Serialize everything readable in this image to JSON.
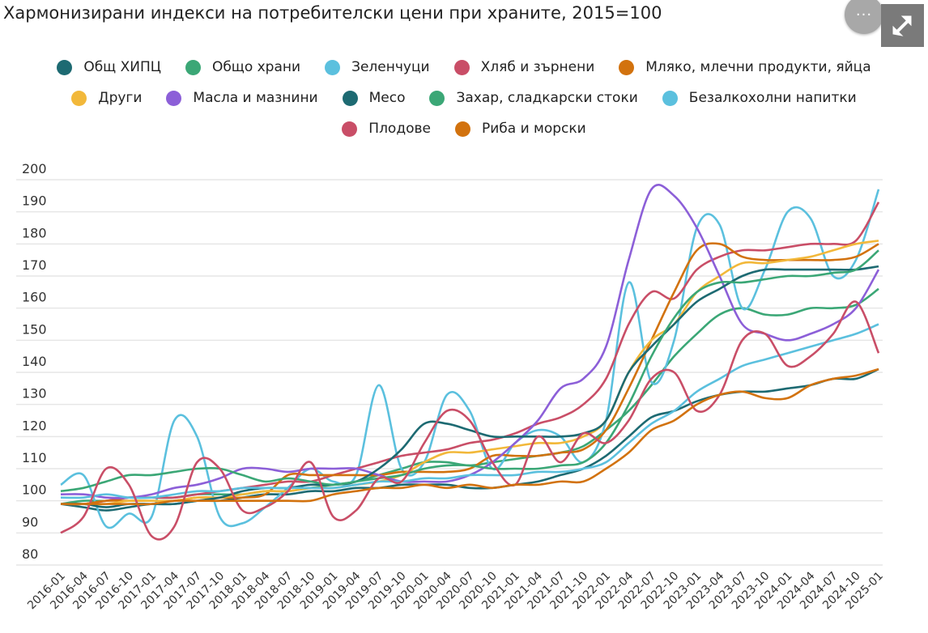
{
  "header": {
    "title": "Хармонизирани индекси на потребителски цени при храните, 2015=100",
    "more_label": "···",
    "more_icon": "more-horizontal-icon",
    "expand_icon": "expand-arrows-icon"
  },
  "chart_data": {
    "type": "line",
    "title": "Хармонизирани индекси на потребителски цени при храните, 2015=100",
    "xlabel": "",
    "ylabel": "",
    "ylim": [
      80,
      200
    ],
    "yticks": [
      "200",
      "190",
      "180",
      "170",
      "160",
      "150",
      "140",
      "130",
      "120",
      "110",
      "100",
      "90",
      "80"
    ],
    "grid": true,
    "legend_position": "top",
    "x": [
      "2016-01",
      "2016-04",
      "2016-07",
      "2016-10",
      "2017-01",
      "2017-04",
      "2017-07",
      "2017-10",
      "2018-01",
      "2018-04",
      "2018-07",
      "2018-10",
      "2019-01",
      "2019-04",
      "2019-07",
      "2019-10",
      "2020-01",
      "2020-04",
      "2020-07",
      "2020-10",
      "2021-01",
      "2021-04",
      "2021-07",
      "2021-10",
      "2022-01",
      "2022-04",
      "2022-07",
      "2022-10",
      "2023-01",
      "2023-04",
      "2023-07",
      "2023-10",
      "2024-01",
      "2024-04",
      "2024-07",
      "2024-10",
      "2025-01"
    ],
    "series": [
      {
        "name": "Общ ХИПЦ",
        "color": "#1d6a72",
        "values": [
          99,
          98,
          97,
          98,
          99,
          99,
          100,
          100,
          101,
          102,
          102,
          103,
          103,
          104,
          104,
          105,
          105,
          105,
          104,
          104,
          105,
          106,
          108,
          110,
          114,
          120,
          126,
          128,
          131,
          133,
          134,
          134,
          135,
          136,
          138,
          138,
          141
        ]
      },
      {
        "name": "Общо храни",
        "color": "#3ba776",
        "values": [
          99,
          100,
          100,
          101,
          101,
          101,
          102,
          102,
          102,
          103,
          103,
          104,
          105,
          106,
          108,
          110,
          112,
          112,
          111,
          112,
          113,
          114,
          115,
          117,
          122,
          128,
          136,
          145,
          152,
          158,
          160,
          158,
          158,
          160,
          160,
          161,
          166
        ]
      },
      {
        "name": "Зеленчуци",
        "color": "#5bc0de",
        "values": [
          105,
          108,
          92,
          96,
          95,
          125,
          120,
          95,
          93,
          98,
          104,
          110,
          106,
          108,
          136,
          110,
          112,
          133,
          128,
          110,
          118,
          122,
          120,
          112,
          125,
          168,
          137,
          150,
          185,
          186,
          160,
          172,
          190,
          188,
          170,
          175,
          197
        ]
      },
      {
        "name": "Хляб и зърнени",
        "color": "#c94e67",
        "values": [
          99,
          99,
          100,
          101,
          101,
          101,
          102,
          103,
          104,
          105,
          106,
          106,
          108,
          110,
          112,
          114,
          115,
          116,
          118,
          119,
          121,
          124,
          126,
          130,
          138,
          155,
          165,
          163,
          172,
          176,
          178,
          178,
          179,
          180,
          180,
          181,
          193
        ]
      },
      {
        "name": "Мляко, млечни продукти, яйца",
        "color": "#d2720e",
        "values": [
          99,
          99,
          100,
          100,
          100,
          100,
          101,
          101,
          101,
          102,
          108,
          108,
          108,
          108,
          108,
          109,
          109,
          109,
          110,
          114,
          114,
          114,
          115,
          116,
          122,
          135,
          150,
          165,
          178,
          180,
          176,
          175,
          175,
          175,
          175,
          176,
          180
        ]
      },
      {
        "name": "Други",
        "color": "#f2b83a",
        "values": [
          99,
          99,
          99,
          100,
          100,
          100,
          101,
          101,
          102,
          103,
          103,
          104,
          104,
          105,
          106,
          108,
          112,
          115,
          115,
          116,
          117,
          118,
          118,
          120,
          125,
          140,
          150,
          155,
          165,
          170,
          174,
          174,
          175,
          176,
          178,
          180,
          181
        ]
      },
      {
        "name": "Масла и мазнини",
        "color": "#8c5fd8",
        "values": [
          102,
          102,
          101,
          101,
          102,
          104,
          105,
          107,
          110,
          110,
          109,
          110,
          110,
          110,
          108,
          106,
          106,
          106,
          108,
          112,
          118,
          125,
          135,
          138,
          148,
          175,
          197,
          195,
          185,
          170,
          155,
          152,
          150,
          152,
          155,
          160,
          172
        ]
      },
      {
        "name": "Месо",
        "color": "#1d6a72",
        "values": [
          99,
          99,
          98,
          99,
          99,
          99,
          100,
          101,
          103,
          104,
          104,
          105,
          105,
          106,
          110,
          116,
          124,
          124,
          122,
          120,
          120,
          120,
          120,
          121,
          125,
          140,
          148,
          155,
          162,
          166,
          170,
          172,
          172,
          172,
          172,
          172,
          173
        ]
      },
      {
        "name": "Захар, сладкарски стоки",
        "color": "#3ba776",
        "values": [
          103,
          104,
          106,
          108,
          108,
          109,
          110,
          110,
          108,
          106,
          107,
          106,
          105,
          106,
          107,
          108,
          110,
          111,
          111,
          110,
          110,
          110,
          111,
          112,
          118,
          130,
          145,
          157,
          165,
          168,
          168,
          169,
          170,
          170,
          171,
          172,
          178
        ]
      },
      {
        "name": "Безалкохолни напитки",
        "color": "#5bc0de",
        "values": [
          101,
          101,
          102,
          101,
          101,
          102,
          103,
          103,
          104,
          104,
          104,
          104,
          104,
          105,
          106,
          106,
          107,
          107,
          108,
          108,
          108,
          109,
          109,
          110,
          112,
          118,
          124,
          128,
          134,
          138,
          142,
          144,
          146,
          148,
          150,
          152,
          155
        ]
      },
      {
        "name": "Плодове",
        "color": "#c94e67",
        "values": [
          90,
          95,
          110,
          105,
          89,
          92,
          112,
          110,
          97,
          98,
          103,
          112,
          95,
          97,
          107,
          106,
          118,
          128,
          125,
          112,
          105,
          120,
          112,
          121,
          118,
          125,
          138,
          140,
          128,
          133,
          150,
          152,
          142,
          145,
          152,
          162,
          146
        ]
      },
      {
        "name": "Риба и морски",
        "color": "#d2720e",
        "values": [
          99,
          99,
          99,
          99,
          99,
          100,
          100,
          100,
          100,
          100,
          100,
          100,
          102,
          103,
          104,
          104,
          105,
          104,
          105,
          104,
          105,
          105,
          106,
          106,
          110,
          115,
          122,
          125,
          130,
          133,
          134,
          132,
          132,
          136,
          138,
          139,
          141
        ]
      }
    ]
  },
  "legend_rows": [
    [
      0,
      1,
      2,
      3,
      4
    ],
    [
      5,
      6,
      7,
      8,
      9
    ],
    [
      10,
      11
    ]
  ]
}
